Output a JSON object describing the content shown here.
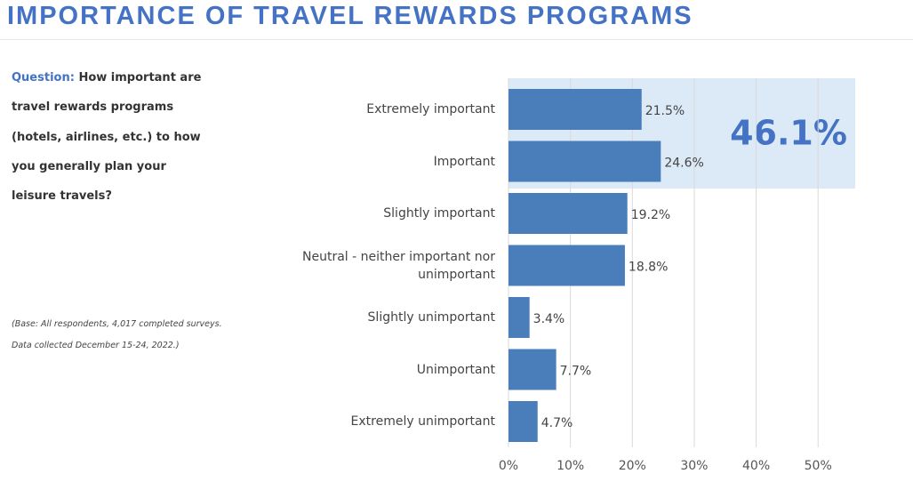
{
  "chart_data": {
    "type": "hbar",
    "title": "IMPORTANCE OF TRAVEL REWARDS PROGRAMS",
    "question_label": "Question:",
    "question_lines": [
      "How important are",
      "travel rewards programs",
      "(hotels, airlines, etc.) to how",
      "you generally plan your",
      "leisure travels?"
    ],
    "note_lines": [
      "(Base: All respondents, 4,017 completed surveys.",
      "Data collected December 15-24, 2022.)"
    ],
    "categories": [
      "Extremely important",
      "Important",
      "Slightly important",
      "Neutral -  neither important nor unimportant",
      "Slightly unimportant",
      "Unimportant",
      "Extremely unimportant"
    ],
    "values": [
      21.5,
      24.6,
      19.2,
      18.8,
      3.4,
      7.7,
      4.7
    ],
    "value_labels": [
      "21.5%",
      "24.6%",
      "19.2%",
      "18.8%",
      "3.4%",
      "7.7%",
      "4.7%"
    ],
    "color": "#4a7ebb",
    "annotation": "46.1%",
    "xlim": [
      0,
      56
    ],
    "xticks": [
      {
        "value": 0,
        "label": "0%"
      },
      {
        "value": 10,
        "label": "10%"
      },
      {
        "value": 20,
        "label": "20%"
      },
      {
        "value": 30,
        "label": "30%"
      },
      {
        "value": 40,
        "label": "40%"
      },
      {
        "value": 50,
        "label": "50%"
      }
    ],
    "grid": true
  }
}
